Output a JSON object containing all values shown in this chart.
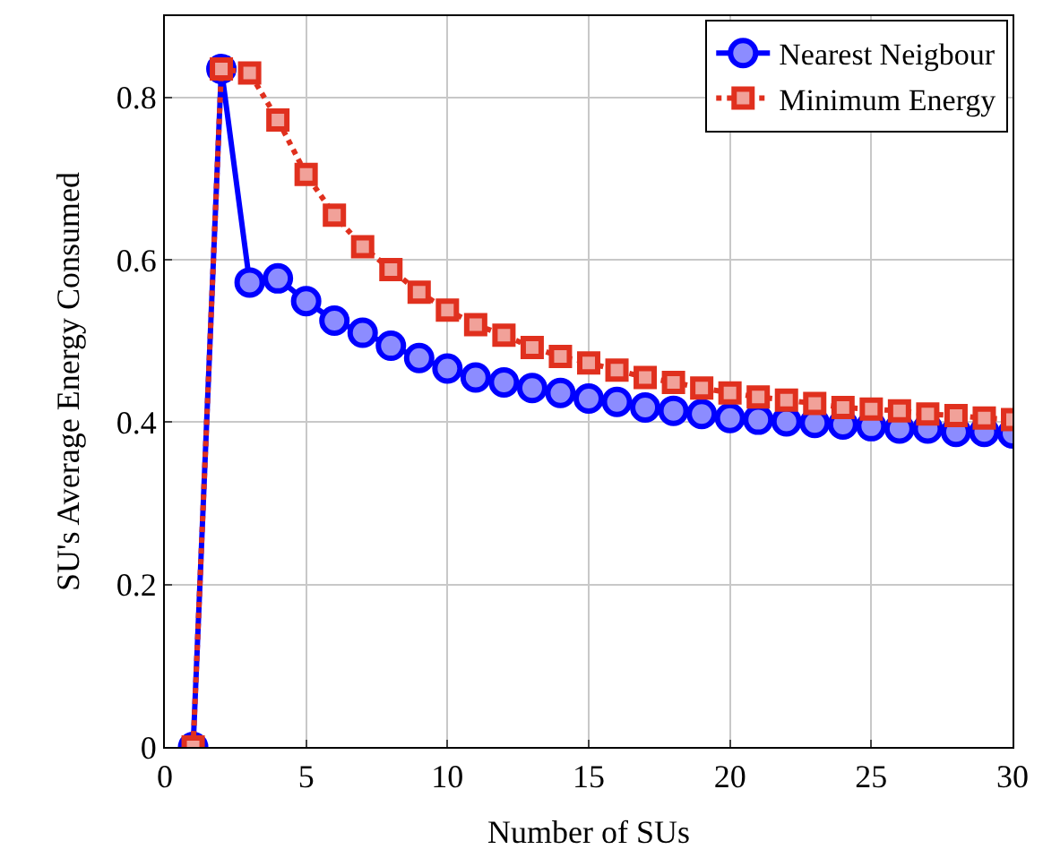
{
  "chart_data": {
    "type": "line",
    "xlabel": "Number of SUs",
    "ylabel": "SU's Average Energy Consumed",
    "x": [
      1,
      2,
      3,
      4,
      5,
      6,
      7,
      8,
      9,
      10,
      11,
      12,
      13,
      14,
      15,
      16,
      17,
      18,
      19,
      20,
      21,
      22,
      23,
      24,
      25,
      26,
      27,
      28,
      29,
      30
    ],
    "series": [
      {
        "name": "Nearest Neigbour",
        "color": "#0000ff",
        "marker": "circle",
        "line_style": "solid",
        "values": [
          0,
          0.835,
          0.572,
          0.577,
          0.549,
          0.525,
          0.51,
          0.494,
          0.479,
          0.466,
          0.455,
          0.449,
          0.442,
          0.436,
          0.429,
          0.425,
          0.418,
          0.414,
          0.41,
          0.405,
          0.403,
          0.401,
          0.399,
          0.397,
          0.395,
          0.392,
          0.392,
          0.388,
          0.388,
          0.386
        ]
      },
      {
        "name": "Minimum Energy",
        "color": "#e0301e",
        "marker": "square",
        "line_style": "dotted",
        "values": [
          0,
          0.835,
          0.83,
          0.772,
          0.705,
          0.655,
          0.616,
          0.588,
          0.56,
          0.538,
          0.52,
          0.507,
          0.492,
          0.481,
          0.473,
          0.464,
          0.455,
          0.449,
          0.442,
          0.436,
          0.431,
          0.427,
          0.423,
          0.418,
          0.416,
          0.414,
          0.41,
          0.408,
          0.405,
          0.403
        ]
      }
    ],
    "xlim": [
      0,
      30
    ],
    "xticks": [
      0,
      5,
      10,
      15,
      20,
      25,
      30
    ],
    "ylim": [
      0,
      0.9
    ],
    "yticks": [
      0,
      0.2,
      0.4,
      0.6,
      0.8
    ],
    "grid": true,
    "legend": "top right"
  }
}
